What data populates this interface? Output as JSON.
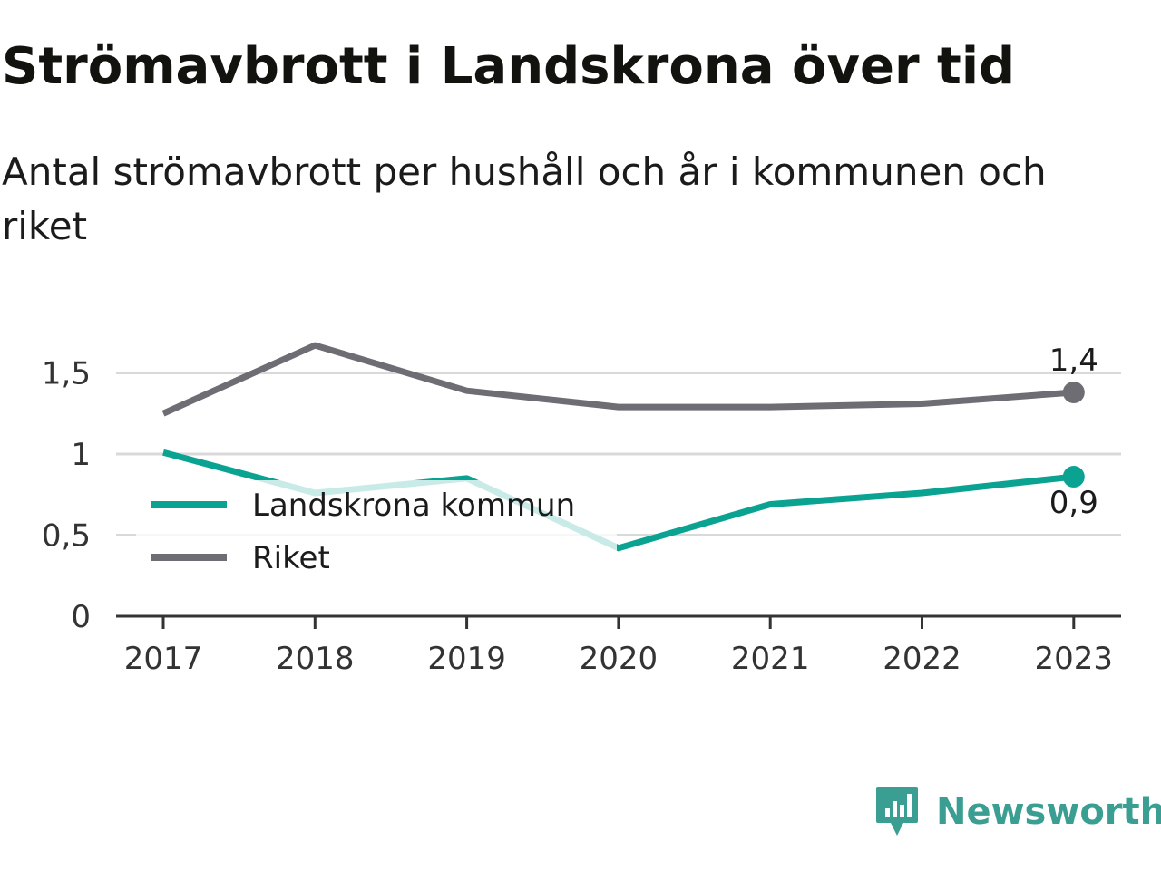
{
  "title": "Strömavbrott i Landskrona över tid",
  "subtitle": "Antal strömavbrott per hushåll och år i kommunen och riket",
  "brand": "Newsworthy",
  "colors": {
    "landskrona": "#0aa392",
    "landskrona_faded": "#c8ebe7",
    "riket": "#6e6d74",
    "grid": "#d9d9d9",
    "axis": "#333333",
    "brand": "#3b9e92"
  },
  "chart_data": {
    "type": "line",
    "categories": [
      "2017",
      "2018",
      "2019",
      "2020",
      "2021",
      "2022",
      "2023"
    ],
    "series": [
      {
        "name": "Landskrona kommun",
        "values": [
          1.01,
          0.76,
          0.85,
          0.42,
          0.69,
          0.76,
          0.86
        ],
        "color": "#0aa392",
        "end_label": "0,9"
      },
      {
        "name": "Riket",
        "values": [
          1.25,
          1.67,
          1.39,
          1.29,
          1.29,
          1.31,
          1.38
        ],
        "color": "#6e6d74",
        "end_label": "1,4"
      }
    ],
    "yticks": [
      0,
      0.5,
      1,
      1.5
    ],
    "ytick_labels": [
      "0",
      "0,5",
      "1",
      "1,5"
    ],
    "ylim": [
      0,
      1.7
    ],
    "grid": true,
    "legend": "left, inside plot"
  }
}
